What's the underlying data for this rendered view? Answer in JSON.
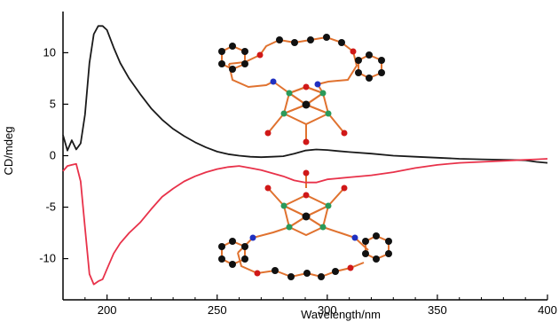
{
  "chart_data": {
    "type": "line",
    "title": "",
    "xlabel": "Wavelength/nm",
    "ylabel": "CD/mdeg",
    "xlim": [
      180,
      400
    ],
    "ylim": [
      -14,
      14
    ],
    "grid": false,
    "x_ticks": [
      200,
      250,
      300,
      350,
      400
    ],
    "y_ticks": [
      -10,
      -5,
      0,
      5,
      10
    ],
    "series": [
      {
        "color": "#1a1a1a",
        "x": [
          180,
          182,
          184,
          186,
          188,
          190,
          192,
          194,
          196,
          198,
          200,
          203,
          206,
          210,
          215,
          220,
          225,
          230,
          235,
          240,
          245,
          250,
          255,
          260,
          265,
          270,
          275,
          280,
          285,
          290,
          295,
          300,
          305,
          310,
          320,
          330,
          340,
          350,
          360,
          370,
          380,
          390,
          395,
          400
        ],
        "y": [
          2.0,
          0.5,
          1.5,
          0.6,
          1.2,
          4.0,
          9.0,
          11.8,
          12.6,
          12.6,
          12.2,
          10.5,
          9.0,
          7.5,
          6.0,
          4.6,
          3.5,
          2.6,
          1.9,
          1.3,
          0.8,
          0.4,
          0.15,
          0.0,
          -0.1,
          -0.15,
          -0.1,
          -0.05,
          0.2,
          0.5,
          0.6,
          0.55,
          0.45,
          0.35,
          0.2,
          0.0,
          -0.1,
          -0.2,
          -0.3,
          -0.35,
          -0.4,
          -0.45,
          -0.6,
          -0.7
        ]
      },
      {
        "color": "#e8324a",
        "x": [
          180,
          182,
          184,
          186,
          188,
          190,
          192,
          194,
          196,
          198,
          200,
          203,
          206,
          210,
          215,
          220,
          225,
          230,
          235,
          240,
          245,
          250,
          255,
          260,
          265,
          270,
          275,
          280,
          285,
          290,
          295,
          300,
          310,
          320,
          330,
          340,
          350,
          360,
          370,
          380,
          390,
          395,
          400
        ],
        "y": [
          -1.5,
          -1.0,
          -0.9,
          -0.8,
          -2.5,
          -7.0,
          -11.5,
          -12.5,
          -12.2,
          -12.0,
          -11.0,
          -9.5,
          -8.5,
          -7.5,
          -6.5,
          -5.2,
          -4.0,
          -3.2,
          -2.5,
          -2.0,
          -1.6,
          -1.3,
          -1.1,
          -1.0,
          -1.2,
          -1.4,
          -1.7,
          -2.0,
          -2.4,
          -2.6,
          -2.6,
          -2.3,
          -2.1,
          -1.9,
          -1.6,
          -1.2,
          -0.9,
          -0.7,
          -0.6,
          -0.5,
          -0.4,
          -0.35,
          -0.3
        ]
      }
    ]
  }
}
